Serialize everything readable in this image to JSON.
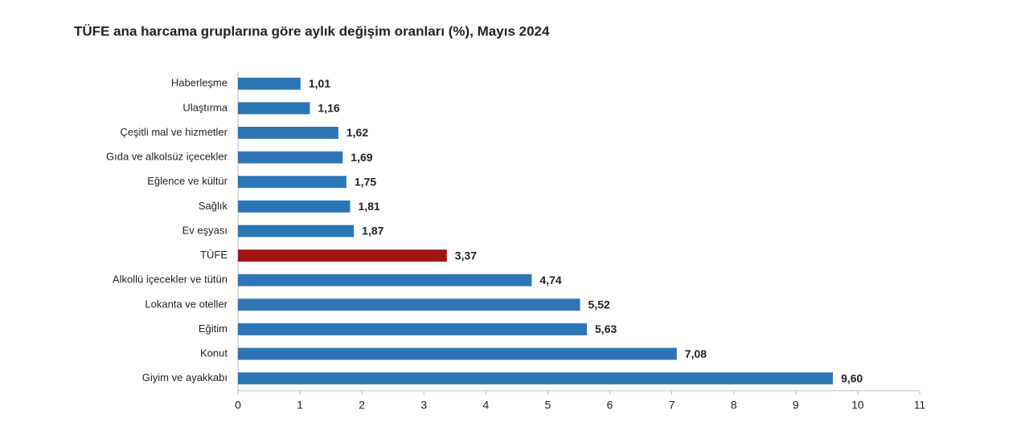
{
  "chart_data": {
    "type": "barh",
    "title": "TÜFE ana harcama gruplarına göre aylık değişim oranları (%), Mayıs 2024",
    "categories": [
      "Haberleşme",
      "Ulaştırma",
      "Çeşitli mal ve hizmetler",
      "Gıda ve alkolsüz içecekler",
      "Eğlence ve kültür",
      "Sağlık",
      "Ev eşyası",
      "TÜFE",
      "Alkollü içecekler ve tütün",
      "Lokanta ve oteller",
      "Eğitim",
      "Konut",
      "Giyim ve ayakkabı"
    ],
    "values": [
      1.01,
      1.16,
      1.62,
      1.69,
      1.75,
      1.81,
      1.87,
      3.37,
      4.74,
      5.52,
      5.63,
      7.08,
      9.6
    ],
    "value_labels": [
      "1,01",
      "1,16",
      "1,62",
      "1,69",
      "1,75",
      "1,81",
      "1,87",
      "3,37",
      "4,74",
      "5,52",
      "5,63",
      "7,08",
      "9,60"
    ],
    "colors": [
      "#2e75b6",
      "#2e75b6",
      "#2e75b6",
      "#2e75b6",
      "#2e75b6",
      "#2e75b6",
      "#2e75b6",
      "#a31515",
      "#2e75b6",
      "#2e75b6",
      "#2e75b6",
      "#2e75b6",
      "#2e75b6"
    ],
    "xlim": [
      0,
      11
    ],
    "xticks": [
      0,
      1,
      2,
      3,
      4,
      5,
      6,
      7,
      8,
      9,
      10,
      11
    ]
  }
}
